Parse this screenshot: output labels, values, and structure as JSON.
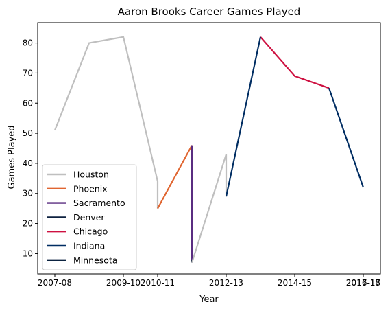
{
  "chart_data": {
    "type": "line",
    "title": "Aaron Brooks  Career Games Played",
    "xlabel": "Year",
    "ylabel": "Games Played",
    "ylim": [
      3.25,
      86.75
    ],
    "x_ticks": [
      "2007-08",
      "2009-10",
      "2010-11",
      "2012-13",
      "2014-15",
      "2016-17",
      "2017-18"
    ],
    "y_ticks": [
      10,
      20,
      30,
      40,
      50,
      60,
      70,
      80
    ],
    "grid": false,
    "legend_position": "lower-left",
    "series": [
      {
        "name": "Houston",
        "color": "#bfbfbf",
        "points": [
          [
            "2007-08",
            51
          ],
          [
            "2008-09",
            80
          ],
          [
            "2009-10",
            82
          ],
          [
            "2010-11",
            34
          ],
          [
            "2010-11",
            25
          ]
        ]
      },
      {
        "name": "Phoenix",
        "color": "#e06530",
        "points": [
          [
            "2010-11",
            25
          ],
          [
            "2011-12",
            46
          ]
        ]
      },
      {
        "name": "Sacramento",
        "color": "#5a2d81",
        "points": [
          [
            "2011-12",
            46
          ],
          [
            "2011-12",
            8
          ]
        ]
      },
      {
        "name": "Denver",
        "color": "#0e2240",
        "points": [
          [
            "2011-12",
            8
          ],
          [
            "2011-12",
            7
          ]
        ]
      },
      {
        "name": "Houston",
        "color": "#bfbfbf",
        "points": [
          [
            "2011-12",
            7
          ],
          [
            "2012-13",
            43
          ],
          [
            "2012-13",
            29
          ]
        ]
      },
      {
        "name": "Chicago",
        "color": "#ce1141",
        "points": [
          [
            "2013-14",
            82
          ],
          [
            "2014-15",
            69
          ],
          [
            "2015-16",
            65
          ]
        ]
      },
      {
        "name": "Indiana",
        "color": "#002d62",
        "points": [
          [
            "2012-13",
            29
          ],
          [
            "2013-14",
            82
          ]
        ]
      },
      {
        "name": "Indiana",
        "color": "#002d62",
        "points": [
          [
            "2015-16",
            65
          ],
          [
            "2016-17",
            32
          ]
        ]
      }
    ],
    "legend": [
      {
        "label": "Houston",
        "color": "#bfbfbf"
      },
      {
        "label": "Phoenix",
        "color": "#e06530"
      },
      {
        "label": "Sacramento",
        "color": "#5a2d81"
      },
      {
        "label": "Denver",
        "color": "#0e2240"
      },
      {
        "label": "Chicago",
        "color": "#ce1141"
      },
      {
        "label": "Indiana",
        "color": "#002d62"
      },
      {
        "label": "Minnesota",
        "color": "#0c2340"
      }
    ]
  }
}
